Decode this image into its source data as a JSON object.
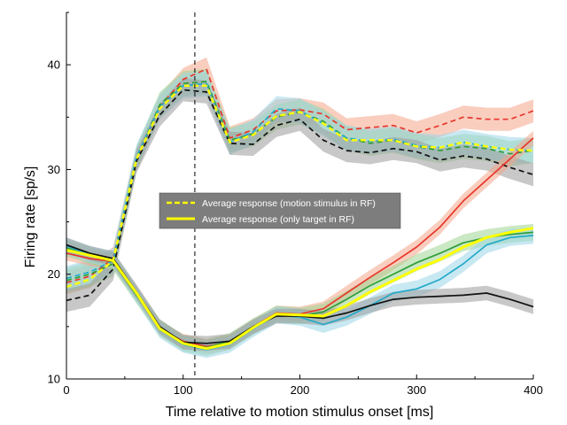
{
  "chart_data": {
    "type": "line",
    "title": "",
    "xlabel": "Time relative to motion stimulus onset [ms]",
    "ylabel": "Firing rate [sp/s]",
    "xlim": [
      0,
      400
    ],
    "ylim": [
      10,
      45
    ],
    "xticks": [
      0,
      100,
      200,
      300,
      400
    ],
    "yticks": [
      10,
      20,
      30,
      40
    ],
    "grid": false,
    "vline": 110,
    "legend": {
      "placement": "center",
      "entries": [
        {
          "label": "Average response (motion stimulus in RF)",
          "style": "dashed",
          "color": "#ffff00"
        },
        {
          "label": "Average response (only target in RF)",
          "style": "solid",
          "color": "#ffff00"
        }
      ]
    },
    "x": [
      0,
      20,
      40,
      60,
      80,
      100,
      120,
      140,
      160,
      180,
      200,
      220,
      240,
      260,
      280,
      300,
      320,
      340,
      360,
      380,
      400
    ],
    "series": [
      {
        "name": "motion-red",
        "style": "dashed",
        "color": "#e8372b",
        "band": "#f4a58a",
        "band_width": 1.1,
        "values": [
          19.2,
          19.8,
          21.5,
          31.0,
          36.0,
          38.6,
          39.6,
          33.0,
          33.8,
          35.6,
          35.7,
          35.3,
          33.8,
          34.0,
          34.2,
          33.5,
          34.2,
          35.0,
          34.8,
          34.8,
          35.6
        ]
      },
      {
        "name": "motion-green",
        "style": "dashed",
        "color": "#2e9e3a",
        "band": "#9fd691",
        "band_width": 1.2,
        "values": [
          19.4,
          20.0,
          21.0,
          31.0,
          36.2,
          38.2,
          38.4,
          32.8,
          33.4,
          35.0,
          35.5,
          34.6,
          33.0,
          32.5,
          32.8,
          32.2,
          31.8,
          32.2,
          32.0,
          31.5,
          31.8
        ]
      },
      {
        "name": "motion-cyan",
        "style": "dashed",
        "color": "#22a9c9",
        "band": "#9bd6e8",
        "band_width": 1.2,
        "values": [
          19.6,
          20.2,
          21.3,
          31.2,
          36.0,
          38.0,
          38.2,
          32.6,
          33.6,
          35.8,
          35.6,
          34.4,
          33.0,
          32.7,
          32.9,
          32.3,
          32.1,
          32.6,
          32.2,
          31.9,
          31.8
        ]
      },
      {
        "name": "motion-black",
        "style": "dashed",
        "color": "#111111",
        "band": "#9a9a9a",
        "band_width": 1.1,
        "values": [
          17.5,
          18.0,
          20.5,
          30.8,
          35.2,
          37.6,
          37.4,
          32.5,
          32.4,
          34.2,
          34.8,
          32.8,
          31.8,
          31.6,
          32.0,
          31.7,
          30.9,
          31.3,
          31.0,
          30.2,
          29.5
        ]
      },
      {
        "name": "target-red",
        "style": "solid",
        "color": "#e8372b",
        "band": "#f4a58a",
        "band_width": 0.7,
        "values": [
          22.0,
          21.5,
          21.2,
          18.2,
          14.8,
          13.6,
          13.1,
          13.5,
          15.0,
          16.3,
          16.2,
          16.7,
          18.2,
          19.7,
          21.1,
          22.6,
          24.5,
          27.0,
          29.0,
          31.0,
          33.0
        ]
      },
      {
        "name": "target-green",
        "style": "solid",
        "color": "#2e9e3a",
        "band": "#9fd691",
        "band_width": 0.8,
        "values": [
          22.5,
          21.8,
          21.2,
          18.0,
          14.9,
          13.4,
          13.0,
          13.6,
          15.0,
          16.2,
          16.0,
          16.4,
          17.6,
          18.9,
          20.0,
          21.1,
          22.0,
          23.0,
          23.5,
          23.8,
          24.0
        ]
      },
      {
        "name": "target-cyan",
        "style": "solid",
        "color": "#22a9c9",
        "band": "#9bd6e8",
        "band_width": 0.8,
        "values": [
          22.7,
          21.9,
          21.4,
          18.1,
          14.7,
          13.3,
          12.8,
          13.3,
          14.8,
          16.1,
          15.9,
          15.2,
          15.9,
          17.0,
          18.2,
          18.6,
          19.5,
          21.0,
          22.8,
          23.5,
          23.7
        ]
      },
      {
        "name": "target-black",
        "style": "solid",
        "color": "#111111",
        "band": "#9a9a9a",
        "band_width": 0.7,
        "values": [
          22.8,
          22.0,
          21.5,
          18.3,
          15.0,
          13.5,
          13.4,
          13.6,
          15.0,
          16.0,
          16.0,
          15.8,
          16.3,
          17.0,
          17.6,
          17.8,
          17.9,
          18.0,
          18.2,
          17.6,
          16.9
        ]
      },
      {
        "name": "average-motion",
        "style": "dashed",
        "color": "#ffff00",
        "band": null,
        "band_width": 0,
        "values": [
          18.8,
          19.5,
          21.3,
          31.0,
          35.8,
          38.0,
          38.0,
          32.6,
          33.3,
          35.1,
          35.5,
          34.4,
          32.8,
          32.8,
          32.8,
          32.2,
          32.1,
          32.6,
          32.2,
          31.9,
          31.8
        ]
      },
      {
        "name": "average-target",
        "style": "solid",
        "color": "#ffff00",
        "band": null,
        "band_width": 0,
        "values": [
          22.3,
          21.8,
          21.3,
          18.2,
          14.8,
          13.4,
          12.9,
          13.4,
          14.9,
          16.2,
          16.1,
          16.0,
          17.0,
          18.3,
          19.4,
          20.5,
          21.4,
          22.6,
          23.5,
          24.0,
          24.4
        ]
      }
    ]
  }
}
